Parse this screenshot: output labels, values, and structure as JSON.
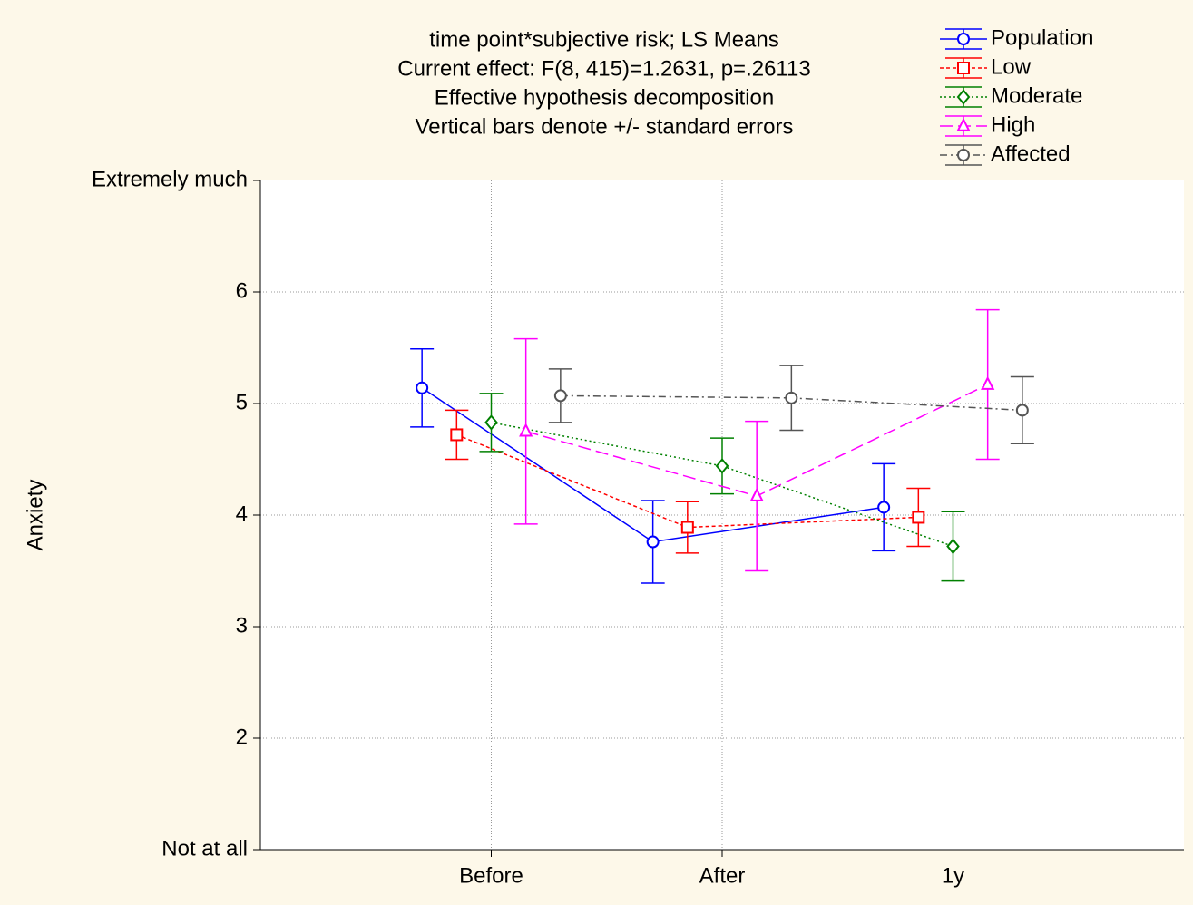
{
  "chart_data": {
    "type": "line",
    "title": [
      "time point*subjective risk; LS Means",
      "Current effect: F(8, 415)=1.2631, p=.26113",
      "Effective hypothesis decomposition",
      "Vertical bars denote +/- standard errors"
    ],
    "y_label": "Anxiety",
    "categories": [
      "Before",
      "After",
      "1y"
    ],
    "ylim": [
      1,
      7
    ],
    "yticks": [
      {
        "value": 1,
        "label": "Not at all"
      },
      2,
      3,
      4,
      5,
      6,
      {
        "value": 7,
        "label": "Extremely much"
      }
    ],
    "grid": true,
    "legend": "top-right",
    "series": [
      {
        "name": "Population",
        "color": "#0000ff",
        "marker": "circle",
        "line_style": "solid",
        "values": [
          5.14,
          3.76,
          4.07
        ],
        "errors": [
          0.35,
          0.37,
          0.39
        ]
      },
      {
        "name": "Low",
        "color": "#ff0000",
        "marker": "square",
        "line_style": "dashed",
        "values": [
          4.72,
          3.89,
          3.98
        ],
        "errors": [
          0.22,
          0.23,
          0.26
        ]
      },
      {
        "name": "Moderate",
        "color": "#008000",
        "marker": "diamond",
        "line_style": "dotted",
        "values": [
          4.83,
          4.44,
          3.72
        ],
        "errors": [
          0.26,
          0.25,
          0.31
        ]
      },
      {
        "name": "High",
        "color": "#ff00ff",
        "marker": "triangle",
        "line_style": "longdash",
        "values": [
          4.75,
          4.17,
          5.17
        ],
        "errors": [
          0.83,
          0.67,
          0.67
        ]
      },
      {
        "name": "Affected",
        "color": "#555555",
        "marker": "circle",
        "line_style": "dashdot",
        "values": [
          5.07,
          5.05,
          4.94
        ],
        "errors": [
          0.24,
          0.29,
          0.3
        ]
      }
    ]
  }
}
